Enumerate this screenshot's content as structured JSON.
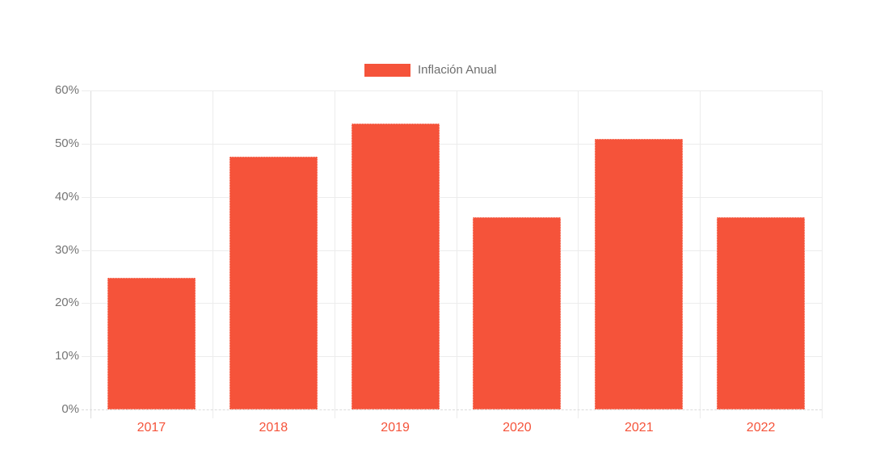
{
  "chart_data": {
    "type": "bar",
    "title": "",
    "xlabel": "",
    "ylabel": "",
    "categories": [
      "2017",
      "2018",
      "2019",
      "2020",
      "2021",
      "2022"
    ],
    "series": [
      {
        "name": "Inflación Anual",
        "values": [
          24.8,
          47.6,
          53.8,
          36.1,
          50.9,
          36.2
        ]
      }
    ],
    "ylim": [
      0,
      60
    ],
    "ytick_step": 10,
    "ytick_labels": [
      "0%",
      "10%",
      "20%",
      "30%",
      "40%",
      "50%",
      "60%"
    ],
    "grid": true,
    "legend_position": "top-center",
    "colors": {
      "bar": "#f5533a",
      "x_label": "#f5533a",
      "y_label": "#757575",
      "legend_text": "#6e6e6e",
      "gridline": "#ececec",
      "axis": "#dcdcdc",
      "background": "#ffffff"
    }
  }
}
